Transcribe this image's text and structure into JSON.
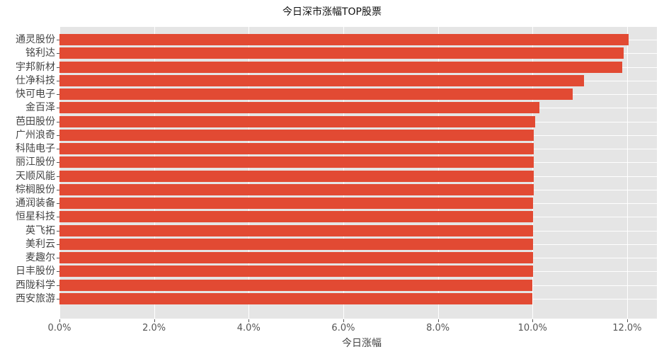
{
  "chart_data": {
    "type": "bar",
    "orientation": "horizontal",
    "title": "今日深市涨幅TOP股票",
    "xlabel": "今日涨幅",
    "ylabel": "",
    "xlim": [
      0,
      12.63
    ],
    "grid": true,
    "legend": null,
    "bar_color": "#e24a33",
    "background_color": "#e5e5e5",
    "x_ticks": [
      "0.0%",
      "2.0%",
      "4.0%",
      "6.0%",
      "8.0%",
      "10.0%",
      "12.0%"
    ],
    "x_tick_values": [
      0,
      2,
      4,
      6,
      8,
      10,
      12
    ],
    "categories": [
      "通灵股份",
      "铭利达",
      "宇邦新材",
      "仕净科技",
      "快可电子",
      "金百泽",
      "芭田股份",
      "广州浪奇",
      "科陆电子",
      "丽江股份",
      "天顺风能",
      "棕榈股份",
      "通润装备",
      "恒星科技",
      "英飞拓",
      "美利云",
      "麦趣尔",
      "日丰股份",
      "西陇科学",
      "西安旅游"
    ],
    "values": [
      12.03,
      11.93,
      11.9,
      11.09,
      10.85,
      10.15,
      10.06,
      10.03,
      10.03,
      10.02,
      10.02,
      10.02,
      10.01,
      10.01,
      10.01,
      10.01,
      10.01,
      10.01,
      10.0,
      10.0
    ]
  }
}
